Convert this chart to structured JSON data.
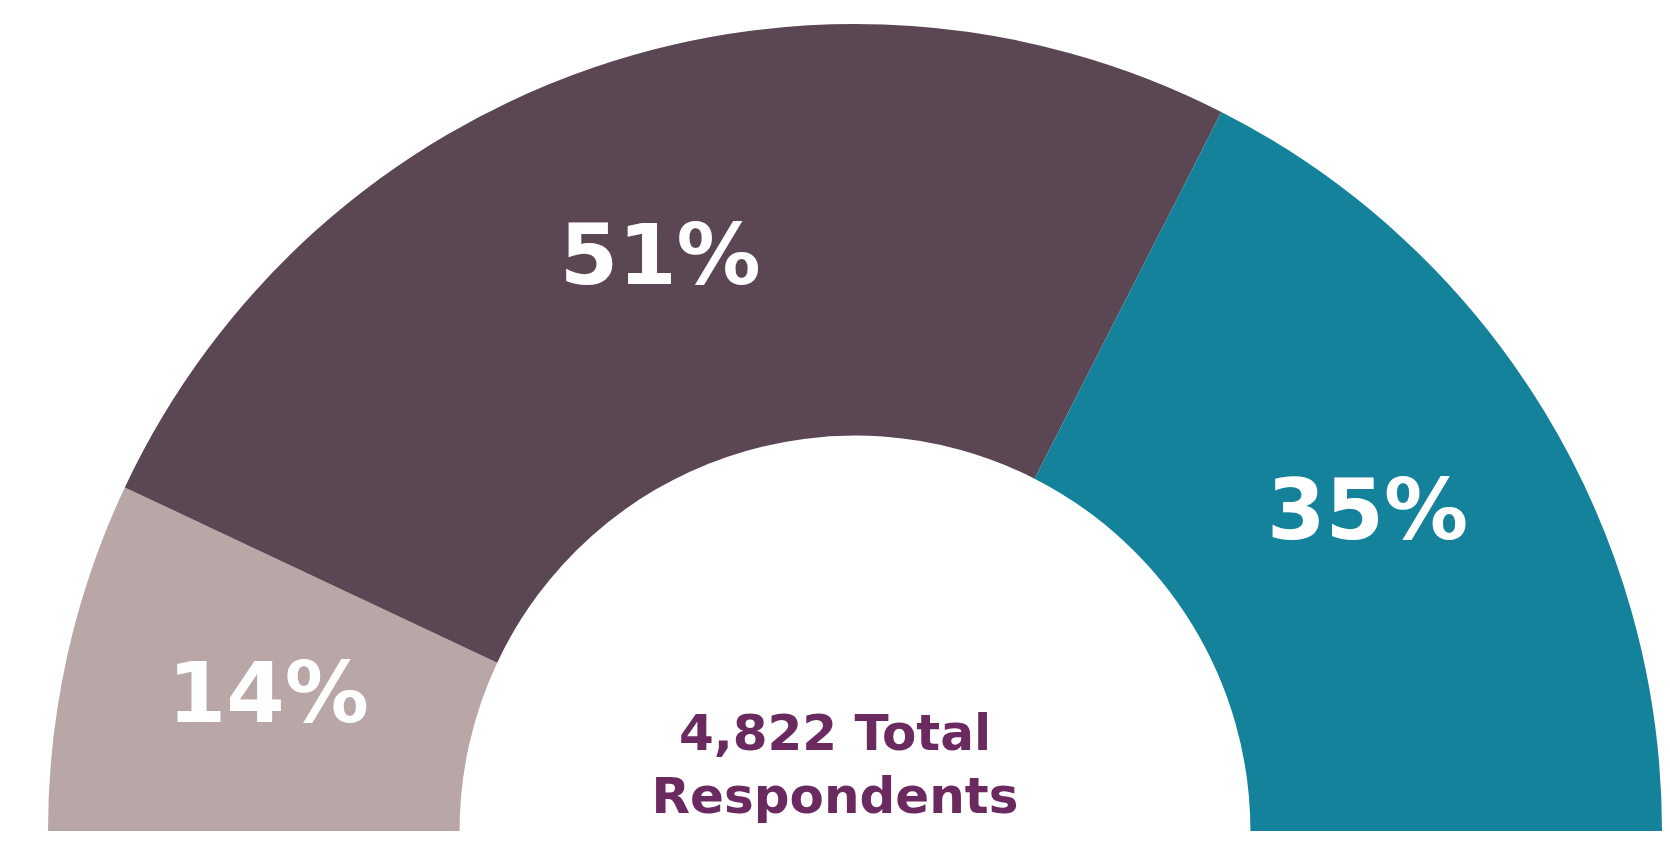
{
  "chart_data": {
    "type": "donut",
    "categories": [
      null,
      null,
      null
    ],
    "values": [
      14,
      51,
      35
    ],
    "colors": [
      "#b8a7a6",
      "#5b4753",
      "#15829b"
    ],
    "value_labels": [
      "14%",
      "51%",
      "35%"
    ],
    "annotations": [
      "4,822 Total Respondents"
    ],
    "legend": false
  }
}
